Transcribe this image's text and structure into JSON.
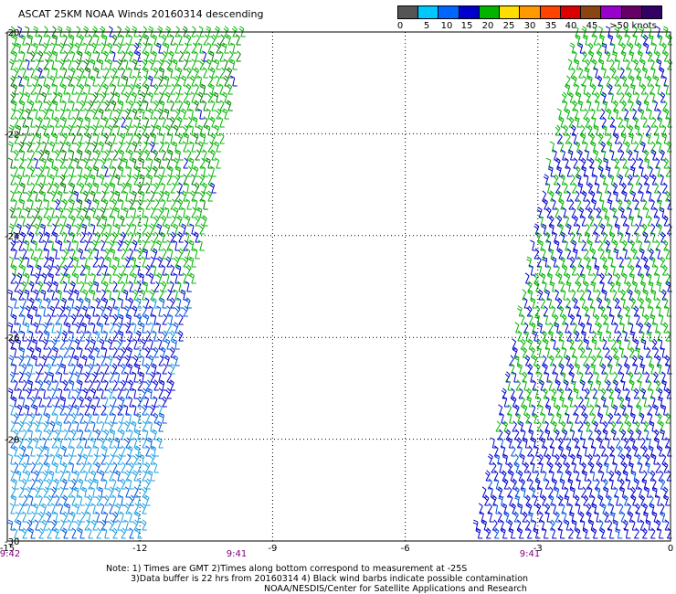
{
  "title": "ASCAT 25KM NOAA Winds 20160314 descending",
  "legend": {
    "colors": [
      "#555555",
      "#00c8ff",
      "#0066ff",
      "#0000cc",
      "#00b400",
      "#ffdd00",
      "#ff9900",
      "#ff4400",
      "#dd0000",
      "#8b4513",
      "#9900cc",
      "#660066",
      "#330066"
    ],
    "labels": [
      "0",
      "5",
      "10",
      "15",
      "20",
      "25",
      "30",
      "35",
      "40",
      "45",
      ">50 knots"
    ]
  },
  "map": {
    "lat_labels": [
      "-20",
      "-22",
      "-24",
      "-26",
      "-28",
      "-30"
    ],
    "lon_labels": [
      "-15",
      "-12",
      "-9",
      "-6",
      "-3",
      "0"
    ],
    "time_labels": [
      "9:42",
      "9:41",
      "9:41"
    ]
  },
  "notes": {
    "line1": "Note: 1) Times are GMT 2)Times along bottom correspond to measurement at -25S",
    "line2": "3)Data buffer is 22 hrs from 20160314 4) Black wind barbs indicate possible contamination",
    "line3": "NOAA/NESDIS/Center for Satellite Applications and Research"
  },
  "barb_colors": {
    "green": "#00b400",
    "dark_green": "#007a00",
    "blue": "#0000cc",
    "mid_blue": "#0055dd",
    "light_blue": "#1a9fe0"
  }
}
